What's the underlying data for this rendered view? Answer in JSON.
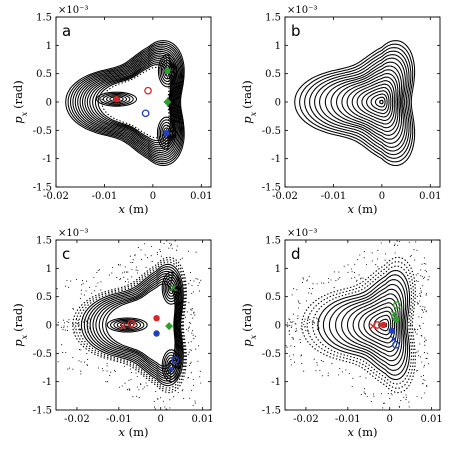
{
  "figure": {
    "multiplier": "×10⁻³",
    "ylabel_var": "p",
    "ylabel_sub": "x",
    "ylabel_unit": "(rad)",
    "xlabel_var": "x",
    "xlabel_unit": "(m)"
  },
  "chart_data": [
    {
      "type": "scatter",
      "panel": "a",
      "title": "",
      "xlabel": "x (m)",
      "ylabel": "p_x (rad)",
      "y_multiplier": "×10⁻³",
      "xlim": [
        -0.02,
        0.012
      ],
      "ylim": [
        -1.5,
        1.5
      ],
      "xticks": [
        -0.02,
        -0.01,
        0,
        0.01
      ],
      "xtick_labels": [
        "-0.02",
        "-0.01",
        "0",
        "0.01"
      ],
      "yticks": [
        -1.5,
        -1,
        -0.5,
        0,
        0.5,
        1,
        1.5
      ],
      "ytick_labels": [
        "-1.5",
        "-1",
        "-0.5",
        "0",
        "0.5",
        "1",
        "1.5"
      ],
      "grid": false,
      "orbit_center": [
        -0.001,
        0.0
      ],
      "outer_extent": {
        "left": -0.018,
        "right": 0.0095,
        "top": 1.18,
        "bottom": -1.22
      },
      "n_outer_curves": 14,
      "islands": [
        {
          "center": [
            -0.0075,
            0.05
          ],
          "color": "#d62728"
        },
        {
          "center": [
            0.003,
            0.55
          ],
          "color": "#2ca02c"
        },
        {
          "center": [
            0.0028,
            -0.55
          ],
          "color": "#1f3fbf"
        }
      ],
      "fixed_points": [
        {
          "x": -0.0075,
          "y": 0.05,
          "color": "#d62728",
          "marker": "circle"
        },
        {
          "x": 0.003,
          "y": 0.55,
          "color": "#2ca02c",
          "marker": "circle"
        },
        {
          "x": 0.0028,
          "y": -0.55,
          "color": "#1f3fbf",
          "marker": "circle"
        },
        {
          "x": -0.001,
          "y": 0.2,
          "color": "#d62728",
          "marker": "open-circle"
        },
        {
          "x": 0.003,
          "y": 0.0,
          "color": "#2ca02c",
          "marker": "diamond"
        },
        {
          "x": -0.0015,
          "y": -0.2,
          "color": "#1f3fbf",
          "marker": "open-circle"
        }
      ]
    },
    {
      "type": "scatter",
      "panel": "b",
      "title": "",
      "xlabel": "x (m)",
      "ylabel": "p_x (rad)",
      "y_multiplier": "×10⁻³",
      "xlim": [
        -0.02,
        0.012
      ],
      "ylim": [
        -1.5,
        1.5
      ],
      "xticks": [
        -0.02,
        -0.01,
        0,
        0.01
      ],
      "xtick_labels": [
        "-0.02",
        "-0.01",
        "0",
        "0.01"
      ],
      "yticks": [
        -1.5,
        -1,
        -0.5,
        0,
        0.5,
        1,
        1.5
      ],
      "ytick_labels": [
        "-1.5",
        "-1",
        "-0.5",
        "0",
        "0.5",
        "1",
        "1.5"
      ],
      "grid": false,
      "orbit_center": [
        0.0,
        0.0
      ],
      "outer_extent": {
        "left": -0.018,
        "right": 0.0095,
        "top": 1.18,
        "bottom": -1.22
      },
      "n_outer_curves": 18,
      "islands": [],
      "fixed_points": []
    },
    {
      "type": "scatter",
      "panel": "c",
      "title": "",
      "xlabel": "x (m)",
      "ylabel": "p_x (rad)",
      "y_multiplier": "×10⁻³",
      "xlim": [
        -0.025,
        0.012
      ],
      "ylim": [
        -1.5,
        1.5
      ],
      "xticks": [
        -0.02,
        -0.01,
        0,
        0.01
      ],
      "xtick_labels": [
        "-0.02",
        "-0.01",
        "0",
        "0.01"
      ],
      "yticks": [
        -1.5,
        -1,
        -0.5,
        0,
        0.5,
        1,
        1.5
      ],
      "ytick_labels": [
        "-1.5",
        "-1",
        "-0.5",
        "0",
        "0.5",
        "1",
        "1.5"
      ],
      "grid": false,
      "orbit_center": [
        -0.001,
        0.0
      ],
      "outer_extent": {
        "left": -0.021,
        "right": 0.009,
        "top": 1.3,
        "bottom": -1.3
      },
      "n_outer_curves": 12,
      "islands": [
        {
          "center": [
            -0.008,
            0.0
          ],
          "color": "#d62728"
        },
        {
          "center": [
            0.0025,
            0.65
          ],
          "color": "#2ca02c"
        },
        {
          "center": [
            0.0025,
            -0.72
          ],
          "color": "#1f3fbf"
        }
      ],
      "fixed_points": [
        {
          "x": -0.009,
          "y": -0.02,
          "color": "#d62728",
          "marker": "x"
        },
        {
          "x": -0.007,
          "y": 0.03,
          "color": "#d62728",
          "marker": "open-circle"
        },
        {
          "x": 0.003,
          "y": 0.65,
          "color": "#2ca02c",
          "marker": "x"
        },
        {
          "x": 0.0025,
          "y": -0.78,
          "color": "#1f3fbf",
          "marker": "x"
        },
        {
          "x": 0.0035,
          "y": -0.62,
          "color": "#1f3fbf",
          "marker": "open-circle"
        },
        {
          "x": -0.001,
          "y": 0.12,
          "color": "#d62728",
          "marker": "circle"
        },
        {
          "x": 0.002,
          "y": -0.02,
          "color": "#2ca02c",
          "marker": "diamond"
        },
        {
          "x": -0.001,
          "y": -0.15,
          "color": "#1f3fbf",
          "marker": "circle"
        }
      ]
    },
    {
      "type": "scatter",
      "panel": "d",
      "title": "",
      "xlabel": "x (m)",
      "ylabel": "p_x (rad)",
      "y_multiplier": "×10⁻³",
      "xlim": [
        -0.025,
        0.012
      ],
      "ylim": [
        -1.5,
        1.5
      ],
      "xticks": [
        -0.02,
        -0.01,
        0,
        0.01
      ],
      "xtick_labels": [
        "-0.02",
        "-0.01",
        "0",
        "0.01"
      ],
      "yticks": [
        -1.5,
        -1,
        -0.5,
        0,
        0.5,
        1,
        1.5
      ],
      "ytick_labels": [
        "-1.5",
        "-1",
        "-0.5",
        "0",
        "0.5",
        "1",
        "1.5"
      ],
      "grid": false,
      "orbit_center": [
        -0.001,
        0.0
      ],
      "outer_extent": {
        "left": -0.021,
        "right": 0.009,
        "top": 1.3,
        "bottom": -1.3
      },
      "n_outer_curves": 16,
      "islands": [],
      "fixed_points": [
        {
          "x": -0.004,
          "y": -0.02,
          "color": "#d62728",
          "marker": "x"
        },
        {
          "x": -0.003,
          "y": 0.0,
          "color": "#d62728",
          "marker": "open-circle"
        },
        {
          "x": -0.0015,
          "y": 0.0,
          "color": "#d62728",
          "marker": "circle"
        },
        {
          "x": 0.001,
          "y": 0.2,
          "color": "#2ca02c",
          "marker": "x"
        },
        {
          "x": 0.0017,
          "y": 0.35,
          "color": "#2ca02c",
          "marker": "open-circle"
        },
        {
          "x": 0.001,
          "y": -0.25,
          "color": "#1f3fbf",
          "marker": "x"
        },
        {
          "x": 0.0015,
          "y": -0.35,
          "color": "#1f3fbf",
          "marker": "open-circle"
        },
        {
          "x": 0.0005,
          "y": -0.1,
          "color": "#1f3fbf",
          "marker": "circle"
        },
        {
          "x": 0.0015,
          "y": 0.1,
          "color": "#2ca02c",
          "marker": "diamond"
        }
      ]
    }
  ]
}
